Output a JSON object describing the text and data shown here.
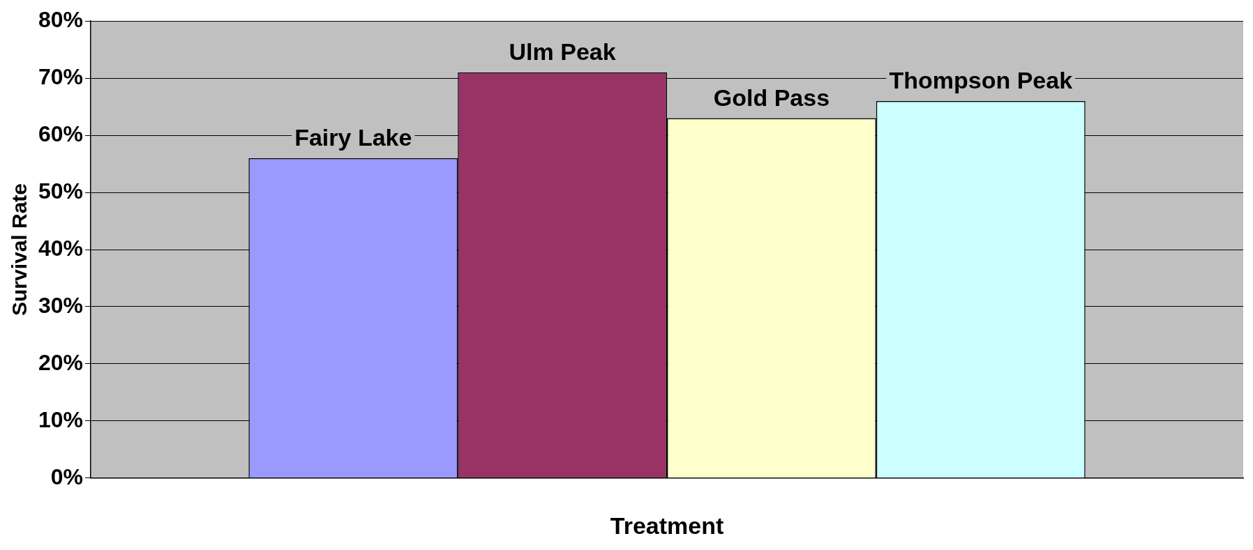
{
  "chart_data": {
    "type": "bar",
    "xlabel": "Treatment",
    "ylabel": "Survival Rate",
    "categories": [
      null
    ],
    "series": [
      {
        "name": "Fairy Lake",
        "color": "#9999ff",
        "values": [
          56
        ]
      },
      {
        "name": "Ulm Peak",
        "color": "#993366",
        "values": [
          71
        ]
      },
      {
        "name": "Gold Pass",
        "color": "#ffffcc",
        "values": [
          63
        ]
      },
      {
        "name": "Thompson Peak",
        "color": "#ccffff",
        "values": [
          66
        ]
      }
    ],
    "ylim": [
      0,
      80
    ],
    "yticks": [
      {
        "value": 0,
        "label": "0%"
      },
      {
        "value": 10,
        "label": "10%"
      },
      {
        "value": 20,
        "label": "20%"
      },
      {
        "value": 30,
        "label": "30%"
      },
      {
        "value": 40,
        "label": "40%"
      },
      {
        "value": 50,
        "label": "50%"
      },
      {
        "value": 60,
        "label": "60%"
      },
      {
        "value": 70,
        "label": "70%"
      },
      {
        "value": 80,
        "label": "80%"
      }
    ],
    "grid": "y",
    "legend": false
  }
}
